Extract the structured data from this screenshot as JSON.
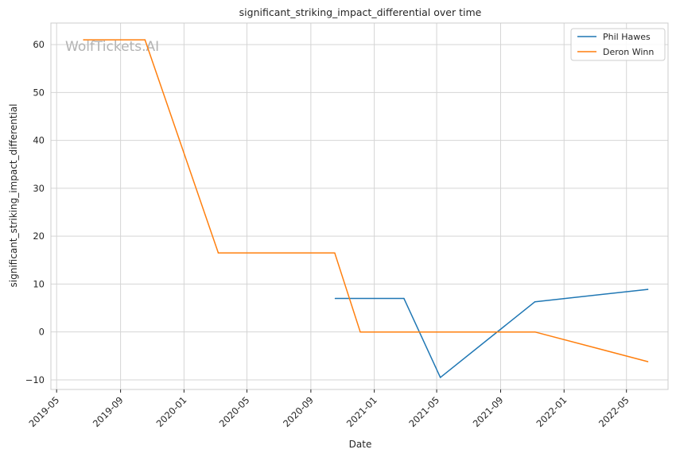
{
  "chart_data": {
    "type": "line",
    "title": "significant_striking_impact_differential over time",
    "xlabel": "Date",
    "ylabel": "significant_striking_impact_differential",
    "watermark": "WolfTickets.AI",
    "x_ticks": [
      "2019-05",
      "2019-09",
      "2020-01",
      "2020-05",
      "2020-09",
      "2021-01",
      "2021-05",
      "2021-09",
      "2022-01",
      "2022-05"
    ],
    "y_ticks": [
      -10,
      0,
      10,
      20,
      30,
      40,
      50,
      60
    ],
    "ylim": [
      -12,
      64.5
    ],
    "xlim": [
      "2019-04-20",
      "2022-07-20"
    ],
    "grid": true,
    "legend_position": "top-right",
    "series": [
      {
        "name": "Phil Hawes",
        "color": "#1f77b4",
        "x": [
          "2020-10-18",
          "2021-02-27",
          "2021-05-08",
          "2021-11-06",
          "2022-06-11"
        ],
        "y": [
          7.0,
          7.0,
          -9.5,
          6.3,
          8.9
        ]
      },
      {
        "name": "Deron Winn",
        "color": "#ff7f0e",
        "x": [
          "2019-06-22",
          "2019-10-18",
          "2020-03-07",
          "2020-10-17",
          "2020-12-05",
          "2021-11-06",
          "2022-06-11"
        ],
        "y": [
          61.0,
          61.0,
          16.5,
          16.5,
          0.0,
          0.0,
          -6.2
        ]
      }
    ]
  }
}
